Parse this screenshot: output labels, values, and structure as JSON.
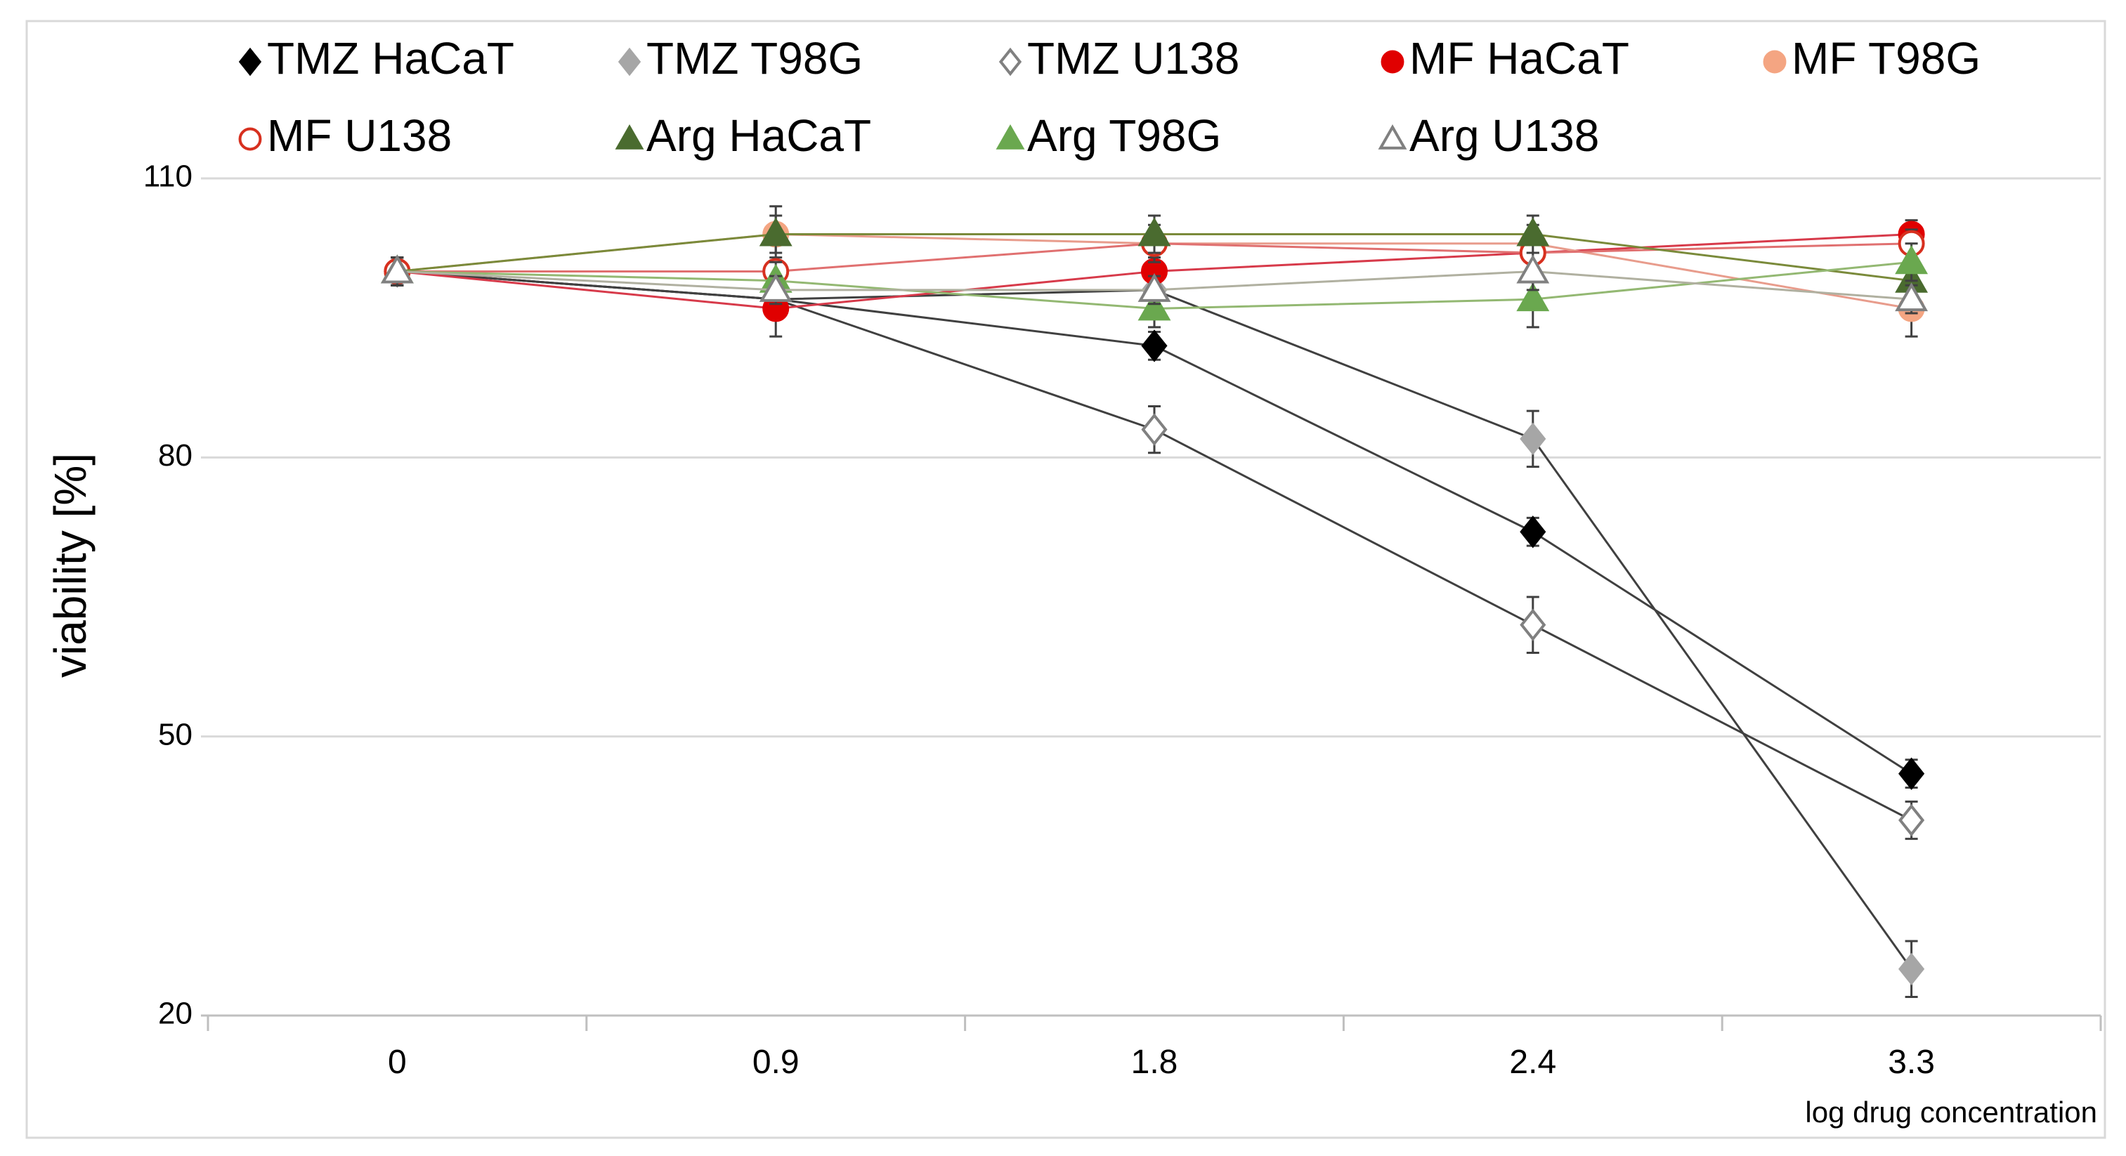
{
  "chart_data": {
    "type": "line",
    "title": "",
    "xlabel": "log drug concentration",
    "ylabel": "viability [%]",
    "categories": [
      "0",
      "0.9",
      "1.8",
      "2.4",
      "3.3"
    ],
    "ylim": [
      20,
      110
    ],
    "yticks": [
      20,
      50,
      80,
      110
    ],
    "grid": true,
    "legend_position": "top",
    "series": [
      {
        "name": "TMZ HaCaT",
        "values": [
          100,
          97,
          92,
          72,
          46
        ],
        "error": [
          1.5,
          1.5,
          1.5,
          1.5,
          1.5
        ],
        "marker": "diamond",
        "fill": "#000000",
        "stroke": "#000000",
        "line": "#404040"
      },
      {
        "name": "TMZ T98G",
        "values": [
          100,
          97,
          98,
          82,
          25
        ],
        "error": [
          1.5,
          1.5,
          1.5,
          3,
          3
        ],
        "marker": "diamond",
        "fill": "#a6a6a6",
        "stroke": "#a6a6a6",
        "line": "#404040"
      },
      {
        "name": "TMZ U138",
        "values": [
          100,
          97,
          83,
          62,
          41
        ],
        "error": [
          1.5,
          1.5,
          2.5,
          3,
          2
        ],
        "marker": "diamond",
        "fill": "#ffffff",
        "stroke": "#808080",
        "line": "#404040"
      },
      {
        "name": "MF HaCaT",
        "values": [
          100,
          96,
          100,
          102,
          104
        ],
        "error": [
          1.5,
          3,
          1.5,
          1.5,
          1.5
        ],
        "marker": "circle",
        "fill": "#e00000",
        "stroke": "#e00000",
        "line": "#d73a4a"
      },
      {
        "name": "MF T98G",
        "values": [
          100,
          104,
          103,
          103,
          96
        ],
        "error": [
          1.5,
          3,
          2,
          2,
          3
        ],
        "marker": "circle",
        "fill": "#f4a582",
        "stroke": "#f4a582",
        "line": "#e89c8c"
      },
      {
        "name": "MF U138",
        "values": [
          100,
          100,
          103,
          102,
          103
        ],
        "error": [
          1.5,
          1.5,
          1.5,
          1.5,
          1.5
        ],
        "marker": "circle",
        "fill": "#ffffff",
        "stroke": "#d7301f",
        "line": "#e07070"
      },
      {
        "name": "Arg HaCaT",
        "values": [
          100,
          104,
          104,
          104,
          99
        ],
        "error": [
          1.5,
          2,
          2,
          2,
          2
        ],
        "marker": "triangle",
        "fill": "#4a6b2f",
        "stroke": "#4a6b2f",
        "line": "#7a8a3a"
      },
      {
        "name": "Arg T98G",
        "values": [
          100,
          99,
          96,
          97,
          101
        ],
        "error": [
          1.5,
          2,
          2,
          3,
          2
        ],
        "marker": "triangle",
        "fill": "#6aa84f",
        "stroke": "#6aa84f",
        "line": "#93b872"
      },
      {
        "name": "Arg U138",
        "values": [
          100,
          98,
          98,
          100,
          97
        ],
        "error": [
          1.5,
          1.5,
          1.5,
          2,
          1.5
        ],
        "marker": "triangle",
        "fill": "#ffffff",
        "stroke": "#808080",
        "line": "#b0b0a0"
      }
    ]
  }
}
